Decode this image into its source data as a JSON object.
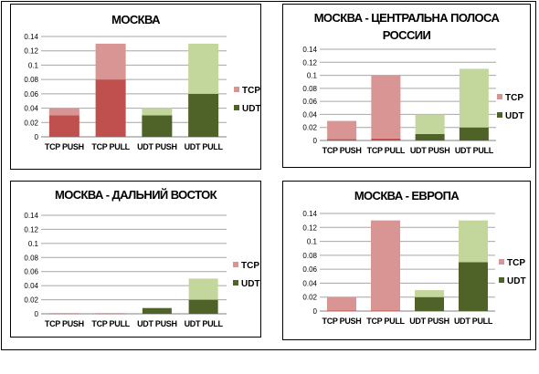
{
  "charts": [
    {
      "title_lines": [
        "МОСКВА"
      ],
      "chart_data": {
        "type": "bar",
        "stacked": true,
        "categories": [
          "TCP PUSH",
          "TCP PULL",
          "UDT PUSH",
          "UDT PULL"
        ],
        "ylim": [
          0,
          0.14
        ],
        "yticks": [
          "0",
          "0.02",
          "0.04",
          "0.06",
          "0.08",
          "0.1",
          "0.12",
          "0.14"
        ],
        "grid": true,
        "legend": "right",
        "series": [
          {
            "name": "UDT",
            "values": [
              0.03,
              0.08,
              0.03,
              0.06
            ],
            "colors": [
              "#c0504d",
              "#c0504d",
              "#4f6228",
              "#4f6228"
            ]
          },
          {
            "name": "TCP",
            "values": [
              0.01,
              0.05,
              0.01,
              0.07
            ],
            "colors": [
              "#d99594",
              "#d99594",
              "#c3d69b",
              "#c3d69b"
            ]
          }
        ],
        "legend_items": [
          {
            "name": "TCP",
            "color": "#d99594"
          },
          {
            "name": "UDT",
            "color": "#4f6228"
          }
        ]
      }
    },
    {
      "title_lines": [
        "МОСКВА - ЦЕНТРАЛЬНА ПОЛОСА",
        "РОССИИ"
      ],
      "chart_data": {
        "type": "bar",
        "stacked": true,
        "categories": [
          "TCP PUSH",
          "TCP PULL",
          "UDT PUSH",
          "UDT PULL"
        ],
        "ylim": [
          0,
          0.14
        ],
        "yticks": [
          "0",
          "0.02",
          "0.04",
          "0.06",
          "0.08",
          "0.1",
          "0.12",
          "0.14"
        ],
        "grid": true,
        "legend": "right",
        "series": [
          {
            "name": "UDT",
            "values": [
              0.002,
              0.003,
              0.01,
              0.02
            ],
            "colors": [
              "#c0504d",
              "#c0504d",
              "#4f6228",
              "#4f6228"
            ]
          },
          {
            "name": "TCP",
            "values": [
              0.028,
              0.097,
              0.03,
              0.09
            ],
            "colors": [
              "#d99594",
              "#d99594",
              "#c3d69b",
              "#c3d69b"
            ]
          }
        ],
        "legend_items": [
          {
            "name": "TCP",
            "color": "#d99594"
          },
          {
            "name": "UDT",
            "color": "#4f6228"
          }
        ]
      }
    },
    {
      "title_lines": [
        "МОСКВА - ДАЛЬНИЙ ВОСТОК"
      ],
      "chart_data": {
        "type": "bar",
        "stacked": true,
        "categories": [
          "TCP PUSH",
          "TCP PULL",
          "UDT PUSH",
          "UDT PULL"
        ],
        "ylim": [
          0,
          0.14
        ],
        "yticks": [
          "0",
          "0.02",
          "0.04",
          "0.06",
          "0.08",
          "0.1",
          "0.12",
          "0.14"
        ],
        "grid": true,
        "legend": "right",
        "series": [
          {
            "name": "UDT",
            "values": [
              0.0005,
              0.0005,
              0.008,
              0.02
            ],
            "colors": [
              "#c0504d",
              "#c0504d",
              "#4f6228",
              "#4f6228"
            ]
          },
          {
            "name": "TCP",
            "values": [
              0.0005,
              0.0005,
              0.001,
              0.03
            ],
            "colors": [
              "#d99594",
              "#d99594",
              "#c3d69b",
              "#c3d69b"
            ]
          }
        ],
        "legend_items": [
          {
            "name": "TCP",
            "color": "#d99594"
          },
          {
            "name": "UDT",
            "color": "#4f6228"
          }
        ]
      }
    },
    {
      "title_lines": [
        "МОСКВА - ЕВРОПА"
      ],
      "chart_data": {
        "type": "bar",
        "stacked": true,
        "categories": [
          "TCP PUSH",
          "TCP PULL",
          "UDT PUSH",
          "UDT PULL"
        ],
        "ylim": [
          0,
          0.14
        ],
        "yticks": [
          "0",
          "0.02",
          "0.04",
          "0.06",
          "0.08",
          "0.1",
          "0.12",
          "0.14"
        ],
        "grid": true,
        "legend": "right",
        "series": [
          {
            "name": "UDT",
            "values": [
              0.001,
              0.001,
              0.02,
              0.07
            ],
            "colors": [
              "#c0504d",
              "#c0504d",
              "#4f6228",
              "#4f6228"
            ]
          },
          {
            "name": "TCP",
            "values": [
              0.019,
              0.129,
              0.01,
              0.06
            ],
            "colors": [
              "#d99594",
              "#d99594",
              "#c3d69b",
              "#c3d69b"
            ]
          }
        ],
        "legend_items": [
          {
            "name": "TCP",
            "color": "#d99594"
          },
          {
            "name": "UDT",
            "color": "#4f6228"
          }
        ]
      }
    }
  ]
}
